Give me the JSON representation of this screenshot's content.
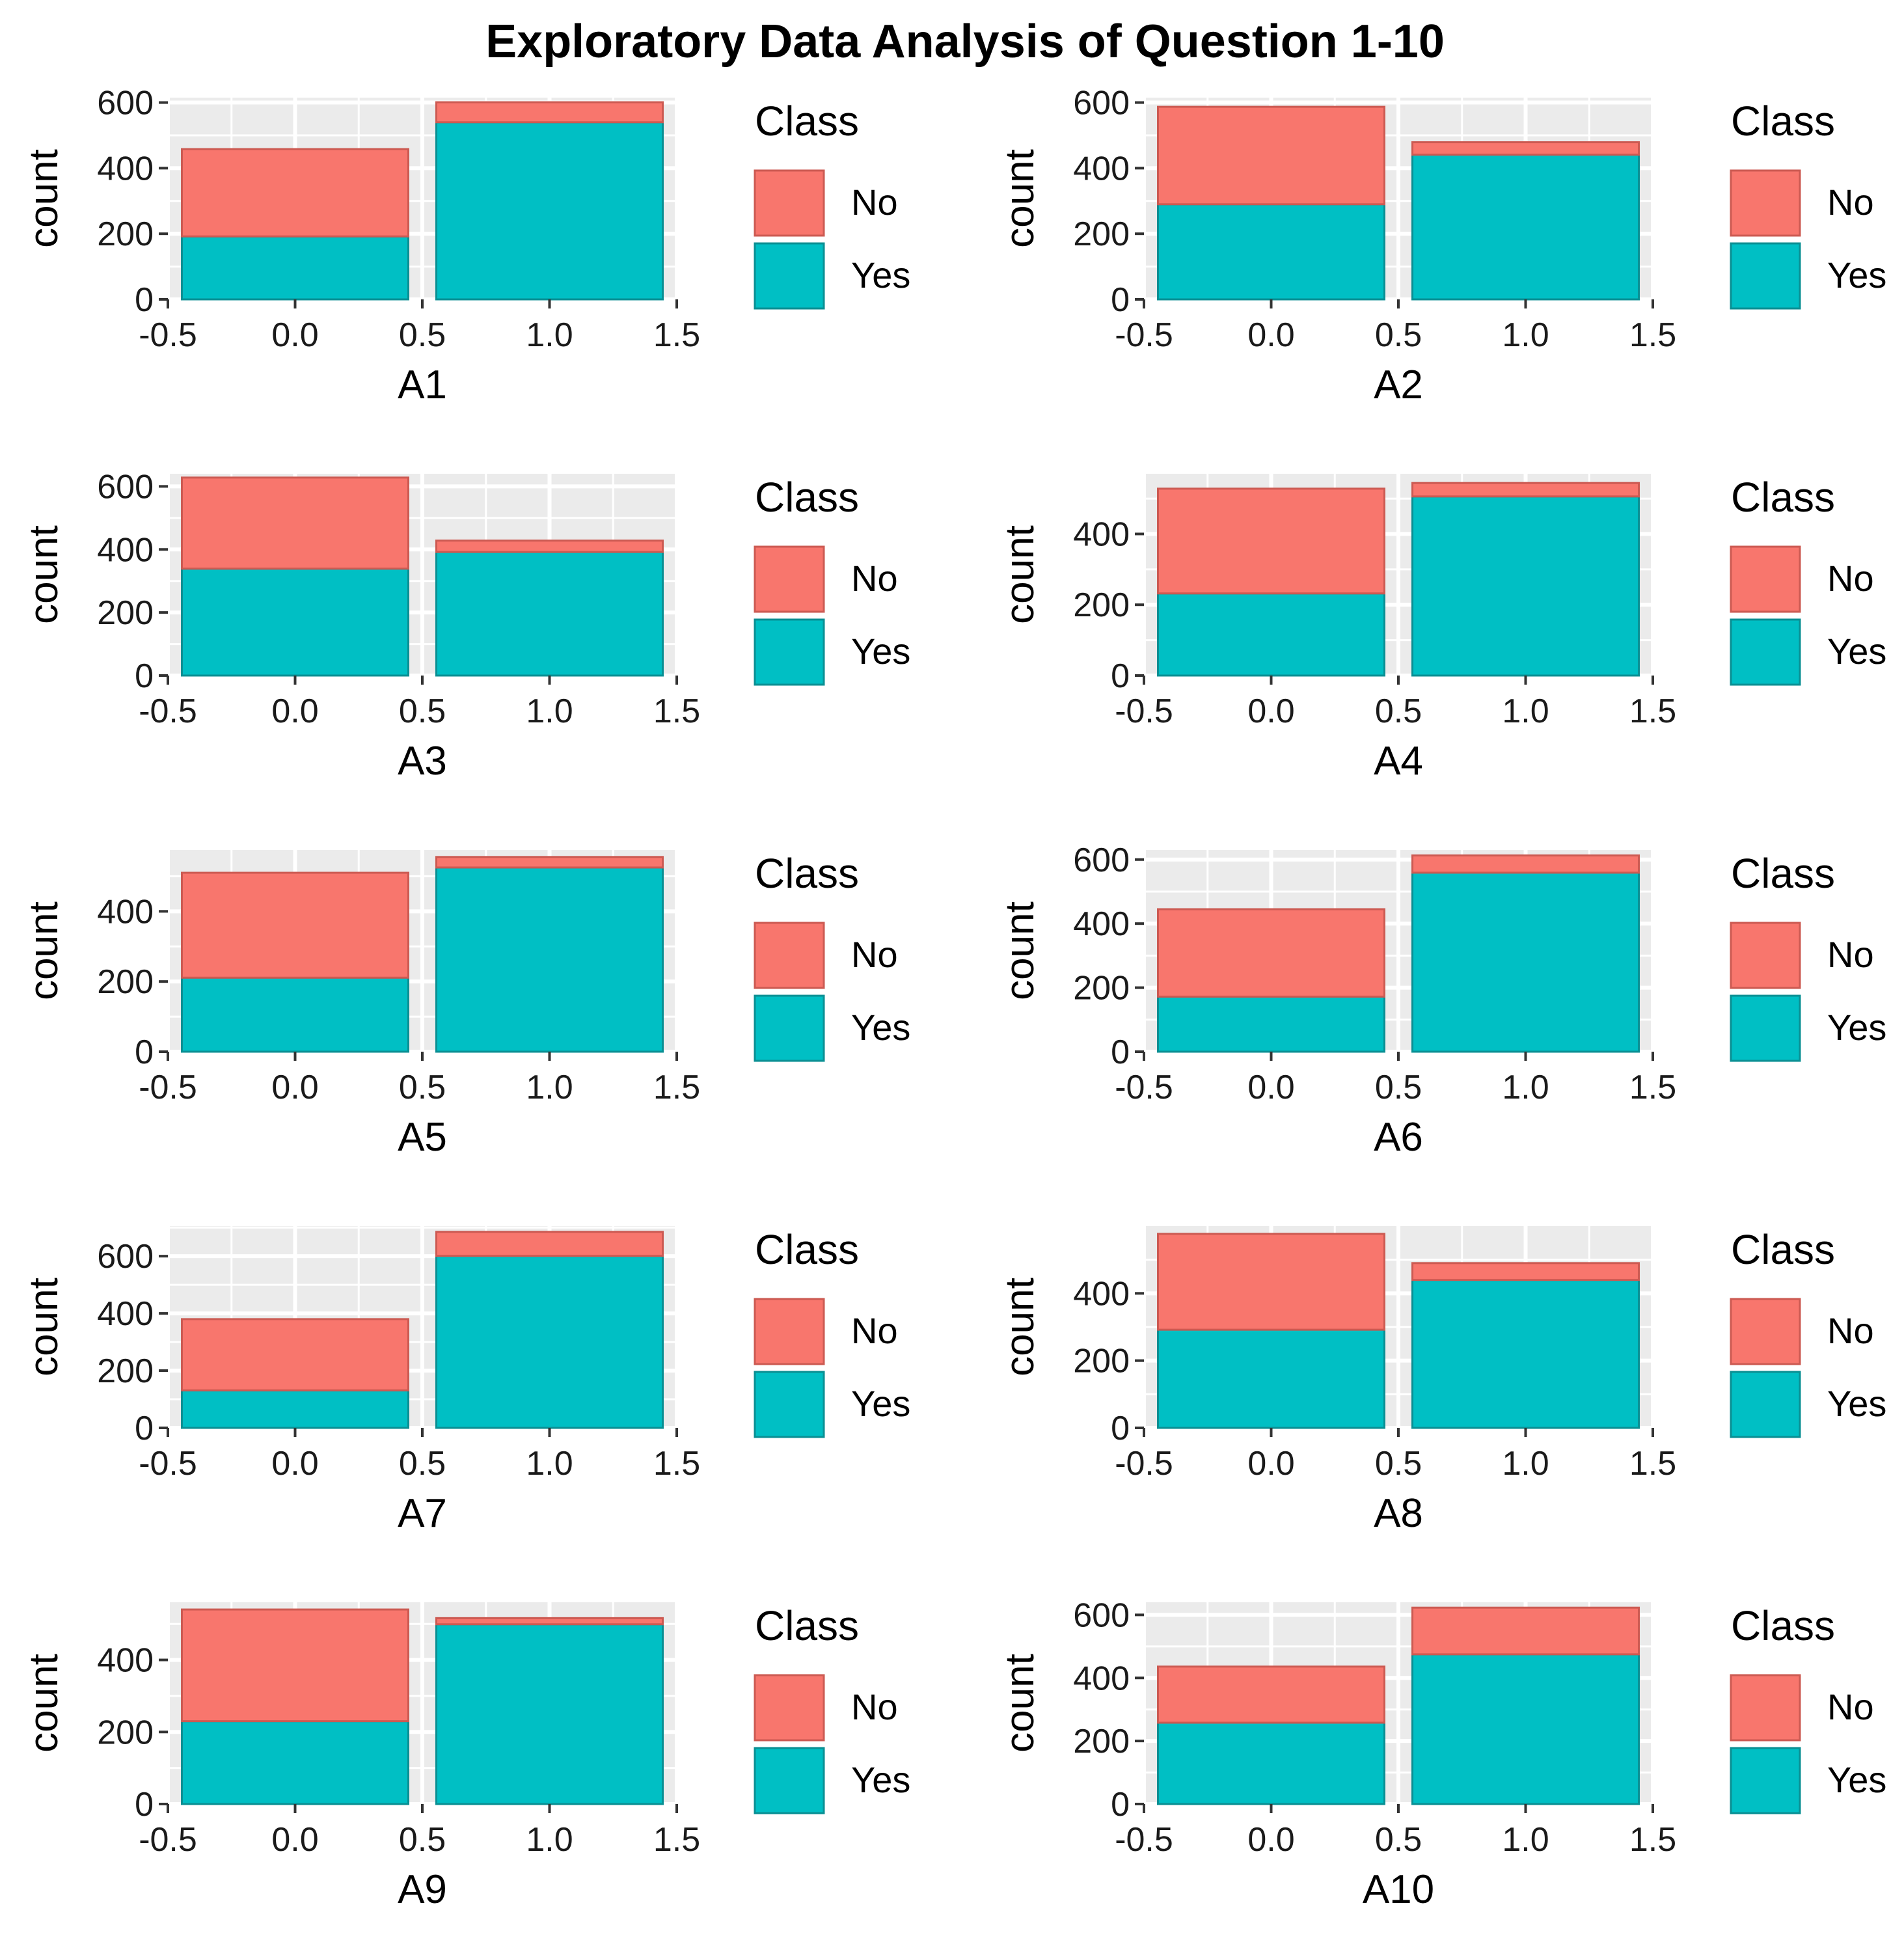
{
  "chart_data": {
    "type": "bar",
    "title": "Exploratory Data Analysis of Question 1-10",
    "fill_colors": {
      "No": "#f8766d",
      "Yes": "#00bfc4"
    },
    "legend": {
      "title": "Class",
      "entries": [
        "No",
        "Yes"
      ],
      "position": "right"
    },
    "panel_background": "#ebebeb",
    "grid": true,
    "panels": [
      {
        "xlabel": "A1",
        "ylabel": "count",
        "xlim": [
          -0.5,
          1.5
        ],
        "xticks": [
          "-0.5",
          "0.0",
          "0.5",
          "1.0",
          "1.5"
        ],
        "ylim": [
          0,
          615
        ],
        "yticks": [
          0,
          200,
          400,
          600
        ],
        "categories": [
          0,
          1
        ],
        "series": [
          {
            "name": "Yes",
            "values": [
              192,
              540
            ]
          },
          {
            "name": "No",
            "values": [
              266,
              61
            ]
          }
        ]
      },
      {
        "xlabel": "A2",
        "ylabel": "count",
        "xlim": [
          -0.5,
          1.5
        ],
        "xticks": [
          "-0.5",
          "0.0",
          "0.5",
          "1.0",
          "1.5"
        ],
        "ylim": [
          0,
          615
        ],
        "yticks": [
          0,
          200,
          400,
          600
        ],
        "categories": [
          0,
          1
        ],
        "series": [
          {
            "name": "Yes",
            "values": [
              290,
              441
            ]
          },
          {
            "name": "No",
            "values": [
              297,
              38
            ]
          }
        ]
      },
      {
        "xlabel": "A3",
        "ylabel": "count",
        "xlim": [
          -0.5,
          1.5
        ],
        "xticks": [
          "-0.5",
          "0.0",
          "0.5",
          "1.0",
          "1.5"
        ],
        "ylim": [
          0,
          640
        ],
        "yticks": [
          0,
          200,
          400,
          600
        ],
        "categories": [
          0,
          1
        ],
        "series": [
          {
            "name": "Yes",
            "values": [
              339,
              392
            ]
          },
          {
            "name": "No",
            "values": [
              289,
              36
            ]
          }
        ]
      },
      {
        "xlabel": "A4",
        "ylabel": "count",
        "xlim": [
          -0.5,
          1.5
        ],
        "xticks": [
          "-0.5",
          "0.0",
          "0.5",
          "1.0",
          "1.5"
        ],
        "ylim": [
          0,
          570
        ],
        "yticks": [
          0,
          200,
          400
        ],
        "categories": [
          0,
          1
        ],
        "series": [
          {
            "name": "Yes",
            "values": [
              232,
              506
            ]
          },
          {
            "name": "No",
            "values": [
              296,
              38
            ]
          }
        ]
      },
      {
        "xlabel": "A5",
        "ylabel": "count",
        "xlim": [
          -0.5,
          1.5
        ],
        "xticks": [
          "-0.5",
          "0.0",
          "0.5",
          "1.0",
          "1.5"
        ],
        "ylim": [
          0,
          575
        ],
        "yticks": [
          0,
          200,
          400
        ],
        "categories": [
          0,
          1
        ],
        "series": [
          {
            "name": "Yes",
            "values": [
              211,
              525
            ]
          },
          {
            "name": "No",
            "values": [
              299,
              30
            ]
          }
        ]
      },
      {
        "xlabel": "A6",
        "ylabel": "count",
        "xlim": [
          -0.5,
          1.5
        ],
        "xticks": [
          "-0.5",
          "0.0",
          "0.5",
          "1.0",
          "1.5"
        ],
        "ylim": [
          0,
          630
        ],
        "yticks": [
          0,
          200,
          400,
          600
        ],
        "categories": [
          0,
          1
        ],
        "series": [
          {
            "name": "Yes",
            "values": [
              172,
              559
            ]
          },
          {
            "name": "No",
            "values": [
              273,
              54
            ]
          }
        ]
      },
      {
        "xlabel": "A7",
        "ylabel": "count",
        "xlim": [
          -0.5,
          1.5
        ],
        "xticks": [
          "-0.5",
          "0.0",
          "0.5",
          "1.0",
          "1.5"
        ],
        "ylim": [
          0,
          705
        ],
        "yticks": [
          0,
          200,
          400,
          600
        ],
        "categories": [
          0,
          1
        ],
        "series": [
          {
            "name": "Yes",
            "values": [
              131,
              601
            ]
          },
          {
            "name": "No",
            "values": [
              249,
              84
            ]
          }
        ]
      },
      {
        "xlabel": "A8",
        "ylabel": "count",
        "xlim": [
          -0.5,
          1.5
        ],
        "xticks": [
          "-0.5",
          "0.0",
          "0.5",
          "1.0",
          "1.5"
        ],
        "ylim": [
          0,
          600
        ],
        "yticks": [
          0,
          200,
          400
        ],
        "categories": [
          0,
          1
        ],
        "series": [
          {
            "name": "Yes",
            "values": [
              292,
              440
            ]
          },
          {
            "name": "No",
            "values": [
              285,
              50
            ]
          }
        ]
      },
      {
        "xlabel": "A9",
        "ylabel": "count",
        "xlim": [
          -0.5,
          1.5
        ],
        "xticks": [
          "-0.5",
          "0.0",
          "0.5",
          "1.0",
          "1.5"
        ],
        "ylim": [
          0,
          560
        ],
        "yticks": [
          0,
          200,
          400
        ],
        "categories": [
          0,
          1
        ],
        "series": [
          {
            "name": "Yes",
            "values": [
              230,
              499
            ]
          },
          {
            "name": "No",
            "values": [
              310,
              17
            ]
          }
        ]
      },
      {
        "xlabel": "A10",
        "ylabel": "count",
        "xlim": [
          -0.5,
          1.5
        ],
        "xticks": [
          "-0.5",
          "0.0",
          "0.5",
          "1.0",
          "1.5"
        ],
        "ylim": [
          0,
          640
        ],
        "yticks": [
          0,
          200,
          400,
          600
        ],
        "categories": [
          0,
          1
        ],
        "series": [
          {
            "name": "Yes",
            "values": [
              258,
              475
            ]
          },
          {
            "name": "No",
            "values": [
              178,
              148
            ]
          }
        ]
      }
    ]
  }
}
